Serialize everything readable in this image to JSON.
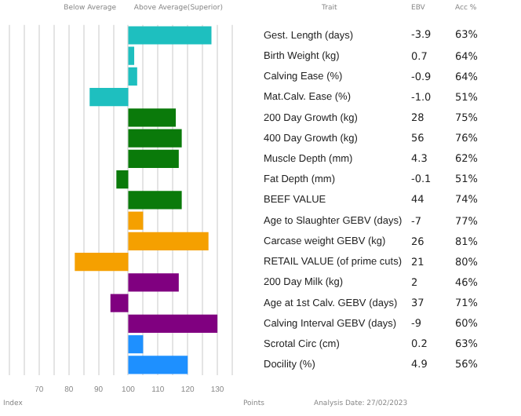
{
  "chart_data": [
    {
      "type": "bar",
      "orientation": "horizontal",
      "categories": [
        "Gest. Length (days)",
        "Birth Weight (kg)",
        "Calving Ease (%)",
        "Mat.Calv. Ease (%)",
        "200 Day Growth (kg)",
        "400 Day Growth (kg)",
        "Muscle Depth (mm)",
        "Fat Depth (mm)",
        "BEEF VALUE",
        "Age to Slaughter GEBV (days)",
        "Carcase weight GEBV (kg)",
        "RETAIL VALUE (of prime cuts)",
        "200 Day Milk (kg)",
        "Age at 1st Calv. GEBV (days)",
        "Calving Interval GEBV (days)",
        "Scrotal Circ (cm)",
        "Docility (%)"
      ],
      "base": [
        100,
        100,
        100,
        100,
        100,
        100,
        100,
        100,
        100,
        100,
        100,
        100,
        100,
        100,
        100,
        100,
        100
      ],
      "values": [
        28,
        2,
        3,
        -13,
        16,
        18,
        17,
        -4,
        18,
        5,
        27,
        -18,
        17,
        -6,
        30,
        5,
        20
      ],
      "colors": [
        "#1ebfbf",
        "#1ebfbf",
        "#1ebfbf",
        "#1ebfbf",
        "#0a7a0a",
        "#0a7a0a",
        "#0a7a0a",
        "#0a7a0a",
        "#0a7a0a",
        "#f5a000",
        "#f5a000",
        "#f5a000",
        "#800080",
        "#800080",
        "#800080",
        "#1e90ff",
        "#1e90ff"
      ],
      "xlim": [
        60,
        135
      ],
      "xticks": [
        {
          "value": 60,
          "label": null
        },
        {
          "value": 65,
          "label": null
        },
        70,
        {
          "value": 75,
          "label": null
        },
        80,
        {
          "value": 85,
          "label": null
        },
        90,
        {
          "value": 95,
          "label": null
        },
        100,
        {
          "value": 105,
          "label": null
        },
        110,
        {
          "value": 115,
          "label": null
        },
        120,
        {
          "value": 125,
          "label": null
        },
        130,
        {
          "value": 135,
          "label": null
        }
      ],
      "grid": "x",
      "legend": false,
      "annotations": [
        "Below Average",
        "Above Average(Superior)",
        "Trait",
        "Index",
        "Points",
        "Analysis Date: 27/02/2023"
      ]
    },
    {
      "type": "other",
      "title": "EBV",
      "annotations": [
        "-3.9",
        "0.7",
        "-0.9",
        "-1.0",
        "28",
        "56",
        "4.3",
        "-0.1",
        "44",
        "-7",
        "26",
        "21",
        "2",
        "37",
        "-9",
        "0.2",
        "4.9"
      ]
    },
    {
      "type": "other",
      "title": "Acc %",
      "annotations": [
        "63%",
        "64%",
        "64%",
        "51%",
        "75%",
        "76%",
        "62%",
        "51%",
        "74%",
        "77%",
        "81%",
        "80%",
        "46%",
        "71%",
        "60%",
        "63%",
        "56%"
      ]
    }
  ]
}
